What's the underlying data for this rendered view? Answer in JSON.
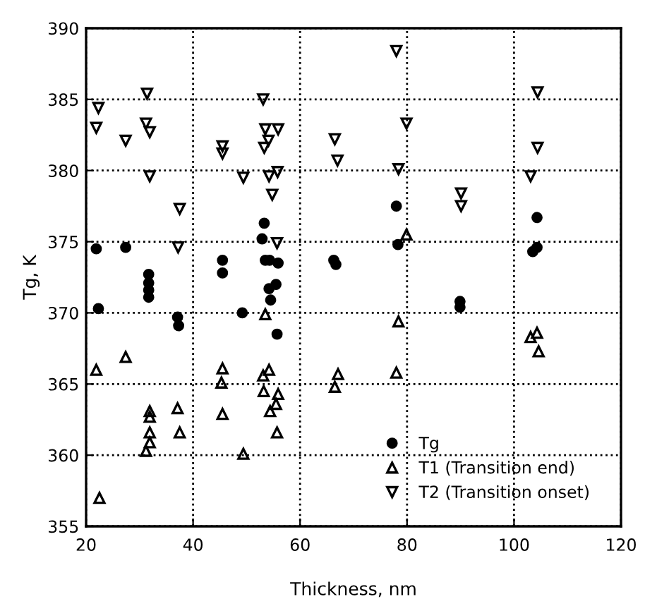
{
  "chart_data": {
    "type": "scatter",
    "xlabel": "Thickness, nm",
    "ylabel": "Tg, K",
    "xlim": [
      20,
      120
    ],
    "xticks": [
      20,
      40,
      60,
      80,
      100,
      120
    ],
    "ylim": [
      355,
      390
    ],
    "yticks": [
      355,
      360,
      365,
      370,
      375,
      380,
      385,
      390
    ],
    "grid": true,
    "legend": "bottom right",
    "series": [
      {
        "name": "Tg",
        "color": "#000000",
        "marker": "circle",
        "x": [
          21.9,
          27.4,
          31.7,
          31.7,
          31.7,
          31.7,
          22.3,
          45.5,
          45.5,
          53.3,
          52.9,
          53.5,
          54.3,
          55.9,
          55.5,
          54.2,
          54.5,
          49.2,
          37.1,
          37.3,
          55.7,
          66.3,
          66.7,
          78.0,
          78.3,
          104.3,
          103.5,
          104.3,
          89.9,
          89.9
        ],
        "values": [
          374.5,
          374.6,
          372.7,
          372.1,
          371.6,
          371.1,
          370.3,
          373.7,
          372.8,
          376.3,
          375.2,
          373.7,
          373.7,
          373.5,
          372.0,
          371.7,
          370.9,
          370.0,
          369.7,
          369.1,
          368.5,
          373.7,
          373.4,
          377.5,
          374.8,
          376.7,
          374.3,
          374.6,
          370.8,
          370.4
        ]
      },
      {
        "name": "T1 (Transition end)",
        "color": "#000000",
        "marker": "triangle",
        "x": [
          21.9,
          27.4,
          22.5,
          31.9,
          31.9,
          31.9,
          31.9,
          31.2,
          37.1,
          37.5,
          45.5,
          45.3,
          45.5,
          49.4,
          53.5,
          54.2,
          53.1,
          53.2,
          55.9,
          55.5,
          54.4,
          55.7,
          67.1,
          66.5,
          78.0,
          78.4,
          79.9,
          103.1,
          104.3,
          104.6
        ],
        "values": [
          366.0,
          366.9,
          357.0,
          363.1,
          362.7,
          361.6,
          360.9,
          360.3,
          363.3,
          361.6,
          366.1,
          365.1,
          362.9,
          360.1,
          369.9,
          366.0,
          365.6,
          364.5,
          364.3,
          363.6,
          363.1,
          361.6,
          365.7,
          364.8,
          365.8,
          369.4,
          375.5,
          368.3,
          368.6,
          367.3
        ]
      },
      {
        "name": "T2 (Transition onset)",
        "color": "#000000",
        "marker": "triangle-down",
        "x": [
          22.3,
          21.9,
          27.4,
          31.4,
          31.2,
          31.9,
          31.9,
          37.5,
          37.2,
          45.5,
          45.5,
          49.4,
          53.1,
          53.5,
          55.9,
          54.1,
          53.3,
          54.2,
          55.8,
          54.8,
          55.7,
          78.0,
          104.4,
          79.9,
          66.5,
          67.0,
          104.4,
          78.4,
          103.1,
          90.1,
          90.1
        ],
        "values": [
          384.4,
          383.0,
          382.1,
          385.4,
          383.3,
          382.7,
          379.6,
          377.3,
          374.6,
          381.7,
          381.2,
          379.5,
          385.0,
          382.9,
          382.9,
          382.1,
          381.6,
          379.6,
          379.9,
          378.3,
          374.9,
          388.4,
          385.5,
          383.3,
          382.2,
          380.7,
          381.6,
          380.1,
          379.6,
          378.4,
          377.5
        ]
      }
    ]
  }
}
